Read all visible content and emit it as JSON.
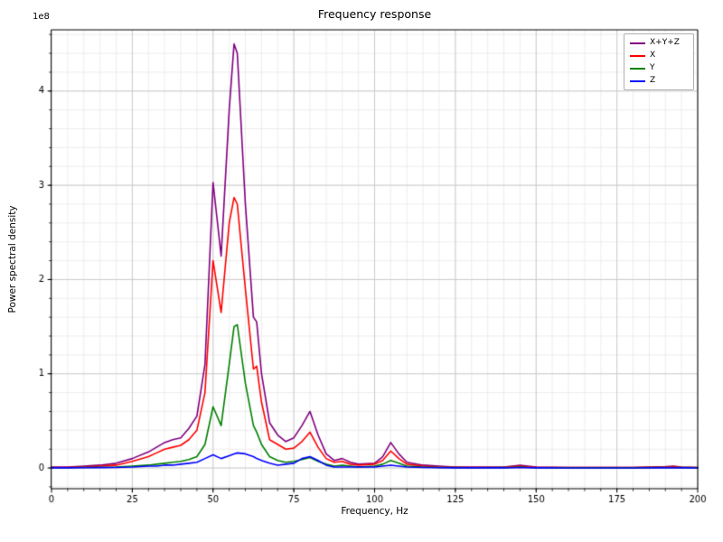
{
  "chart_data": {
    "type": "line",
    "title": "Frequency response",
    "xlabel": "Frequency, Hz",
    "ylabel": "Power spectral density",
    "offset_text": "1e8",
    "xlim": [
      0,
      200
    ],
    "ylim_1e8": [
      -0.22,
      4.65
    ],
    "xticks": [
      0,
      25,
      50,
      75,
      100,
      125,
      150,
      175,
      200
    ],
    "yticks_1e8": [
      0,
      1,
      2,
      3,
      4
    ],
    "x_minor_step": 5,
    "y_minor_step_1e8": 0.2,
    "grid_major_color": "#c8c8c8",
    "grid_minor_color": "#e5e5e5",
    "axes_edge_color": "#000000",
    "background_color": "#ffffff",
    "legend_position": "upper right",
    "grid": true,
    "x": [
      0,
      5,
      10,
      15,
      20,
      25,
      30,
      32.5,
      35,
      37.5,
      40,
      42.5,
      45,
      47.5,
      50,
      52.5,
      55,
      56.5,
      57.5,
      60,
      62.5,
      63.5,
      65,
      67.5,
      70,
      72.5,
      75,
      77.5,
      80,
      82.5,
      85,
      87.5,
      90,
      92.5,
      95,
      100,
      102.5,
      105,
      107.5,
      110,
      115,
      120,
      125,
      130,
      140,
      142.5,
      145,
      147.5,
      150,
      160,
      170,
      180,
      190,
      192.5,
      195,
      200
    ],
    "series": [
      {
        "name": "X+Y+Z",
        "color": "#800080",
        "values_1e8": [
          0.01,
          0.01,
          0.02,
          0.03,
          0.05,
          0.1,
          0.17,
          0.22,
          0.27,
          0.3,
          0.32,
          0.42,
          0.55,
          1.1,
          3.03,
          2.25,
          3.8,
          4.5,
          4.4,
          2.8,
          1.6,
          1.55,
          1.0,
          0.48,
          0.35,
          0.28,
          0.32,
          0.45,
          0.6,
          0.35,
          0.15,
          0.08,
          0.1,
          0.06,
          0.04,
          0.05,
          0.12,
          0.27,
          0.15,
          0.06,
          0.03,
          0.02,
          0.01,
          0.01,
          0.01,
          0.02,
          0.03,
          0.02,
          0.01,
          0.005,
          0.005,
          0.005,
          0.015,
          0.02,
          0.01,
          0.005
        ]
      },
      {
        "name": "X",
        "color": "#ff0000",
        "values_1e8": [
          0.005,
          0.005,
          0.01,
          0.02,
          0.03,
          0.07,
          0.12,
          0.16,
          0.2,
          0.22,
          0.24,
          0.3,
          0.4,
          0.8,
          2.2,
          1.65,
          2.6,
          2.87,
          2.8,
          1.9,
          1.05,
          1.08,
          0.7,
          0.3,
          0.25,
          0.2,
          0.21,
          0.28,
          0.38,
          0.22,
          0.1,
          0.06,
          0.07,
          0.04,
          0.03,
          0.04,
          0.08,
          0.18,
          0.1,
          0.04,
          0.02,
          0.01,
          0.008,
          0.006,
          0.008,
          0.012,
          0.02,
          0.01,
          0.007,
          0.004,
          0.004,
          0.004,
          0.01,
          0.015,
          0.008,
          0.004
        ]
      },
      {
        "name": "Y",
        "color": "#008000",
        "values_1e8": [
          0.003,
          0.003,
          0.005,
          0.008,
          0.01,
          0.02,
          0.03,
          0.04,
          0.05,
          0.06,
          0.07,
          0.09,
          0.12,
          0.25,
          0.65,
          0.45,
          1.1,
          1.5,
          1.52,
          0.9,
          0.45,
          0.38,
          0.25,
          0.12,
          0.08,
          0.06,
          0.07,
          0.09,
          0.11,
          0.07,
          0.04,
          0.02,
          0.03,
          0.02,
          0.01,
          0.02,
          0.04,
          0.08,
          0.05,
          0.02,
          0.01,
          0.005,
          0.004,
          0.003,
          0.004,
          0.006,
          0.01,
          0.005,
          0.003,
          0.002,
          0.002,
          0.002,
          0.005,
          0.006,
          0.004,
          0.002
        ]
      },
      {
        "name": "Z",
        "color": "#0000ff",
        "values_1e8": [
          0.002,
          0.002,
          0.003,
          0.004,
          0.005,
          0.01,
          0.02,
          0.02,
          0.03,
          0.03,
          0.04,
          0.05,
          0.06,
          0.1,
          0.14,
          0.1,
          0.13,
          0.15,
          0.16,
          0.15,
          0.12,
          0.1,
          0.08,
          0.05,
          0.03,
          0.04,
          0.05,
          0.1,
          0.12,
          0.08,
          0.03,
          0.01,
          0.01,
          0.01,
          0.01,
          0.01,
          0.02,
          0.03,
          0.02,
          0.01,
          0.005,
          0.003,
          0.002,
          0.002,
          0.002,
          0.003,
          0.004,
          0.003,
          0.002,
          0.001,
          0.001,
          0.001,
          0.002,
          0.003,
          0.002,
          0.001
        ]
      }
    ]
  }
}
